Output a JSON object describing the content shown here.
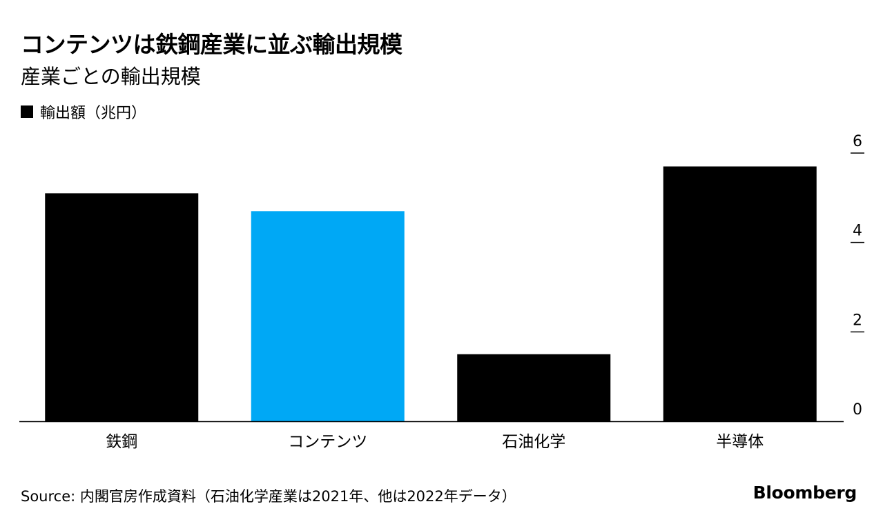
{
  "title": "コンテンツは鉄鋼産業に並ぶ輸出規模",
  "subtitle": "産業ごとの輸出規模",
  "legend": {
    "label": "輸出額（兆円）",
    "color": "#000000"
  },
  "source": "Source: 内閣官房作成資料（石油化学産業は2021年、他は2022年データ）",
  "brand": "Bloomberg",
  "colors": {
    "default_bar": "#000000",
    "highlight_bar": "#00a8f5",
    "axis": "#000000"
  },
  "chart_data": {
    "type": "bar",
    "categories": [
      "鉄鋼",
      "コンテンツ",
      "石油化学",
      "半導体"
    ],
    "values": [
      5.1,
      4.7,
      1.5,
      5.7
    ],
    "highlight": "コンテンツ",
    "ylim": [
      0,
      6
    ],
    "yticks": [
      0,
      2,
      4,
      6
    ],
    "grid": false,
    "y_axis_side": "right",
    "legend_placement": "top-left"
  }
}
